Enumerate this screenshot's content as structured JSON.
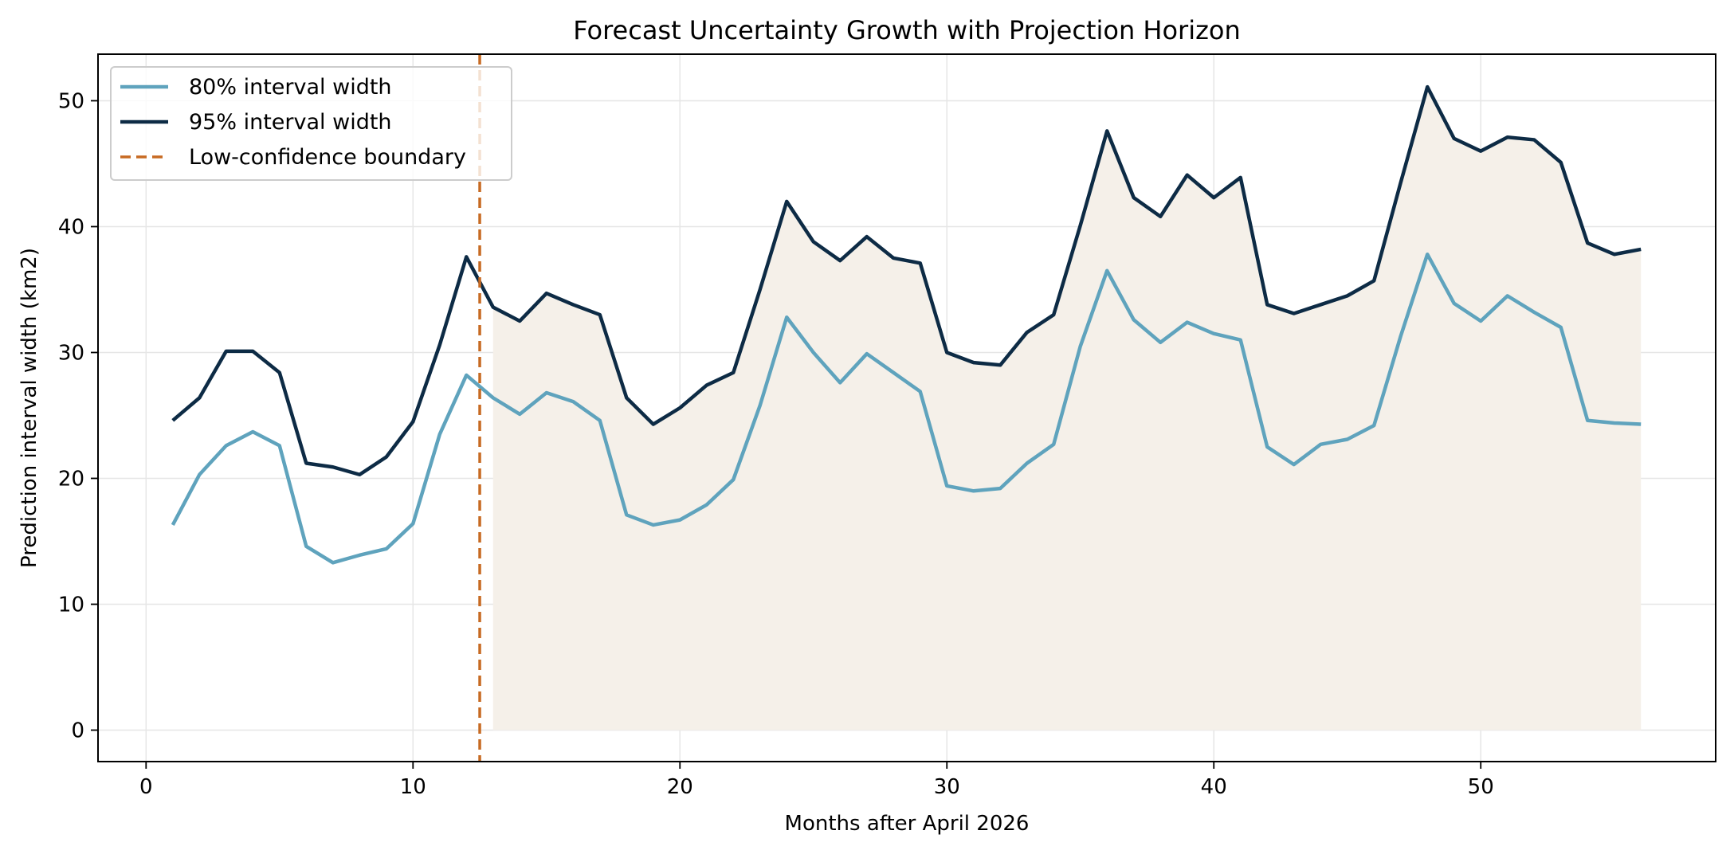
{
  "chart_data": {
    "type": "line",
    "title": "Forecast Uncertainty Growth with Projection Horizon",
    "xlabel": "Months after April 2026",
    "ylabel": "Prediction interval width (km2)",
    "xlim": [
      -1.8,
      58.8
    ],
    "ylim": [
      -2.5,
      53.7
    ],
    "x_ticks": [
      0,
      10,
      20,
      30,
      40,
      50
    ],
    "y_ticks": [
      0,
      10,
      20,
      30,
      40,
      50
    ],
    "grid": true,
    "legend_position": "top-left",
    "x": [
      1,
      2,
      3,
      4,
      5,
      6,
      7,
      8,
      9,
      10,
      11,
      12,
      13,
      14,
      15,
      16,
      17,
      18,
      19,
      20,
      21,
      22,
      23,
      24,
      25,
      26,
      27,
      28,
      29,
      30,
      31,
      32,
      33,
      34,
      35,
      36,
      37,
      38,
      39,
      40,
      41,
      42,
      43,
      44,
      45,
      46,
      47,
      48,
      49,
      50,
      51,
      52,
      53,
      54,
      55,
      56
    ],
    "series": [
      {
        "name": "80% interval width",
        "color": "#5fa3bd",
        "values": [
          16.3,
          20.3,
          22.6,
          23.7,
          22.6,
          14.6,
          13.3,
          13.9,
          14.4,
          16.4,
          23.5,
          28.2,
          26.4,
          25.1,
          26.8,
          26.1,
          24.6,
          17.1,
          16.3,
          16.7,
          17.9,
          19.9,
          25.8,
          32.8,
          30.0,
          27.6,
          29.9,
          28.4,
          26.9,
          19.4,
          19.0,
          19.2,
          21.2,
          22.7,
          30.5,
          36.5,
          32.6,
          30.8,
          32.4,
          31.5,
          31.0,
          22.5,
          21.1,
          22.7,
          23.1,
          24.2,
          31.3,
          37.8,
          33.9,
          32.5,
          34.5,
          33.2,
          32.0,
          24.6,
          24.4,
          24.3
        ]
      },
      {
        "name": "95% interval width",
        "color": "#0d2b45",
        "values": [
          24.6,
          26.4,
          30.1,
          30.1,
          28.4,
          21.2,
          20.9,
          20.3,
          21.7,
          24.5,
          30.6,
          37.6,
          33.6,
          32.5,
          34.7,
          33.8,
          33.0,
          26.4,
          24.3,
          25.6,
          27.4,
          28.4,
          35.0,
          42.0,
          38.8,
          37.3,
          39.2,
          37.5,
          37.1,
          30.0,
          29.2,
          29.0,
          31.6,
          33.0,
          40.1,
          47.6,
          42.3,
          40.8,
          44.1,
          42.3,
          43.9,
          33.8,
          33.1,
          33.8,
          34.5,
          35.7,
          43.5,
          51.1,
          47.0,
          46.0,
          47.1,
          46.9,
          45.1,
          38.7,
          37.8,
          38.2
        ]
      }
    ],
    "shaded_region": {
      "color": "#f5f0e9",
      "x_start": 13,
      "x_end": 56,
      "y_bottom": 0,
      "top_series": "95% interval width"
    },
    "reference_line": {
      "name": "Low-confidence boundary",
      "x": 12.5,
      "color": "#c76a22",
      "style": "dashed"
    }
  }
}
